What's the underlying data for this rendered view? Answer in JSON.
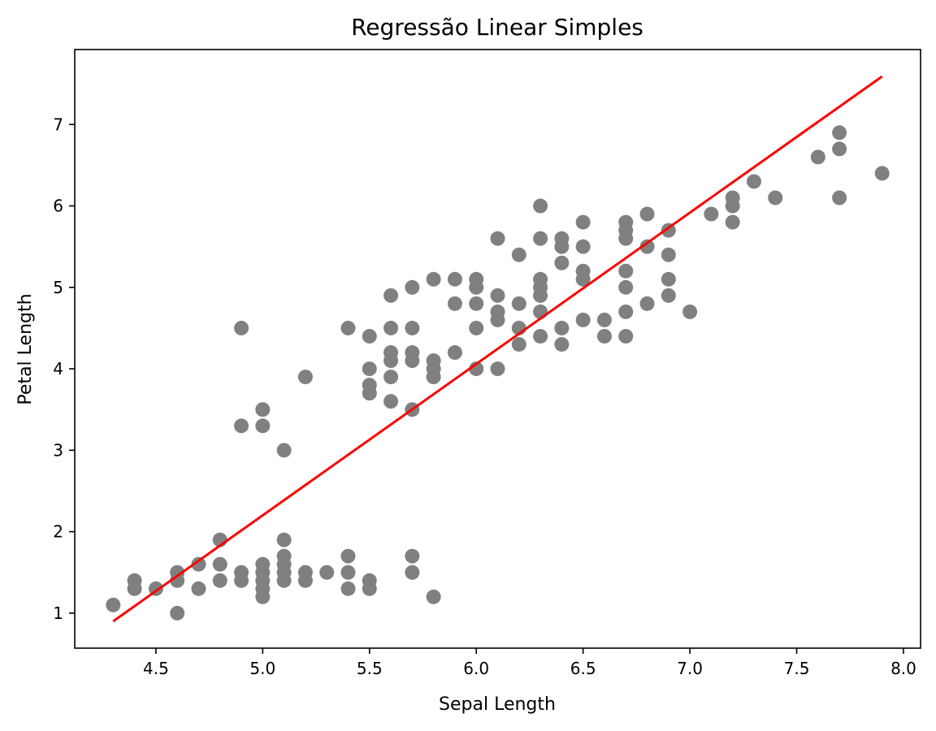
{
  "chart_data": {
    "type": "scatter",
    "title": "Regressão Linear Simples",
    "xlabel": "Sepal Length",
    "ylabel": "Petal Length",
    "xlim": [
      4.12,
      8.08
    ],
    "ylim": [
      0.57,
      7.92
    ],
    "xticks": [
      4.5,
      5.0,
      5.5,
      6.0,
      6.5,
      7.0,
      7.5,
      8.0
    ],
    "xtick_labels": [
      "4.5",
      "5.0",
      "5.5",
      "6.0",
      "6.5",
      "7.0",
      "7.5",
      "8.0"
    ],
    "yticks": [
      1,
      2,
      3,
      4,
      5,
      6,
      7
    ],
    "ytick_labels": [
      "1",
      "2",
      "3",
      "4",
      "5",
      "6",
      "7"
    ],
    "grid": false,
    "point_color": "#808080",
    "line_color": "#ff0000",
    "points": [
      [
        4.3,
        1.1
      ],
      [
        4.4,
        1.3
      ],
      [
        4.4,
        1.4
      ],
      [
        4.5,
        1.3
      ],
      [
        4.6,
        1.0
      ],
      [
        4.6,
        1.4
      ],
      [
        4.6,
        1.5
      ],
      [
        4.7,
        1.3
      ],
      [
        4.7,
        1.6
      ],
      [
        4.8,
        1.4
      ],
      [
        4.8,
        1.6
      ],
      [
        4.8,
        1.9
      ],
      [
        4.9,
        1.4
      ],
      [
        4.9,
        1.5
      ],
      [
        4.9,
        3.3
      ],
      [
        4.9,
        4.5
      ],
      [
        5.0,
        1.2
      ],
      [
        5.0,
        1.3
      ],
      [
        5.0,
        1.4
      ],
      [
        5.0,
        1.5
      ],
      [
        5.0,
        1.6
      ],
      [
        5.0,
        3.3
      ],
      [
        5.0,
        3.5
      ],
      [
        5.1,
        1.4
      ],
      [
        5.1,
        1.5
      ],
      [
        5.1,
        1.6
      ],
      [
        5.1,
        1.7
      ],
      [
        5.1,
        1.9
      ],
      [
        5.1,
        3.0
      ],
      [
        5.2,
        1.4
      ],
      [
        5.2,
        1.5
      ],
      [
        5.2,
        3.9
      ],
      [
        5.3,
        1.5
      ],
      [
        5.4,
        1.3
      ],
      [
        5.4,
        1.5
      ],
      [
        5.4,
        1.7
      ],
      [
        5.4,
        4.5
      ],
      [
        5.5,
        1.3
      ],
      [
        5.5,
        1.4
      ],
      [
        5.5,
        3.7
      ],
      [
        5.5,
        3.8
      ],
      [
        5.5,
        4.0
      ],
      [
        5.5,
        4.4
      ],
      [
        5.6,
        3.6
      ],
      [
        5.6,
        3.9
      ],
      [
        5.6,
        4.1
      ],
      [
        5.6,
        4.2
      ],
      [
        5.6,
        4.5
      ],
      [
        5.6,
        4.9
      ],
      [
        5.7,
        1.5
      ],
      [
        5.7,
        1.7
      ],
      [
        5.7,
        3.5
      ],
      [
        5.7,
        4.1
      ],
      [
        5.7,
        4.2
      ],
      [
        5.7,
        4.5
      ],
      [
        5.7,
        5.0
      ],
      [
        5.8,
        1.2
      ],
      [
        5.8,
        3.9
      ],
      [
        5.8,
        4.0
      ],
      [
        5.8,
        4.1
      ],
      [
        5.8,
        5.1
      ],
      [
        5.9,
        4.2
      ],
      [
        5.9,
        4.8
      ],
      [
        5.9,
        5.1
      ],
      [
        6.0,
        4.0
      ],
      [
        6.0,
        4.5
      ],
      [
        6.0,
        4.8
      ],
      [
        6.0,
        5.0
      ],
      [
        6.0,
        5.1
      ],
      [
        6.1,
        4.0
      ],
      [
        6.1,
        4.6
      ],
      [
        6.1,
        4.7
      ],
      [
        6.1,
        4.9
      ],
      [
        6.1,
        5.6
      ],
      [
        6.2,
        4.3
      ],
      [
        6.2,
        4.5
      ],
      [
        6.2,
        4.8
      ],
      [
        6.2,
        5.4
      ],
      [
        6.3,
        4.4
      ],
      [
        6.3,
        4.7
      ],
      [
        6.3,
        4.9
      ],
      [
        6.3,
        5.0
      ],
      [
        6.3,
        5.1
      ],
      [
        6.3,
        5.6
      ],
      [
        6.3,
        6.0
      ],
      [
        6.4,
        4.3
      ],
      [
        6.4,
        4.5
      ],
      [
        6.4,
        5.3
      ],
      [
        6.4,
        5.5
      ],
      [
        6.4,
        5.6
      ],
      [
        6.5,
        4.6
      ],
      [
        6.5,
        5.1
      ],
      [
        6.5,
        5.2
      ],
      [
        6.5,
        5.5
      ],
      [
        6.5,
        5.8
      ],
      [
        6.6,
        4.4
      ],
      [
        6.6,
        4.6
      ],
      [
        6.7,
        4.4
      ],
      [
        6.7,
        4.7
      ],
      [
        6.7,
        5.0
      ],
      [
        6.7,
        5.2
      ],
      [
        6.7,
        5.6
      ],
      [
        6.7,
        5.7
      ],
      [
        6.7,
        5.8
      ],
      [
        6.8,
        4.8
      ],
      [
        6.8,
        5.5
      ],
      [
        6.8,
        5.9
      ],
      [
        6.9,
        4.9
      ],
      [
        6.9,
        5.1
      ],
      [
        6.9,
        5.4
      ],
      [
        6.9,
        5.7
      ],
      [
        7.0,
        4.7
      ],
      [
        7.1,
        5.9
      ],
      [
        7.2,
        5.8
      ],
      [
        7.2,
        6.0
      ],
      [
        7.2,
        6.1
      ],
      [
        7.3,
        6.3
      ],
      [
        7.4,
        6.1
      ],
      [
        7.6,
        6.6
      ],
      [
        7.7,
        6.1
      ],
      [
        7.7,
        6.7
      ],
      [
        7.7,
        6.9
      ],
      [
        7.9,
        6.4
      ]
    ],
    "regression_line": {
      "x": [
        4.3,
        7.9
      ],
      "y": [
        0.9,
        7.59
      ]
    }
  }
}
